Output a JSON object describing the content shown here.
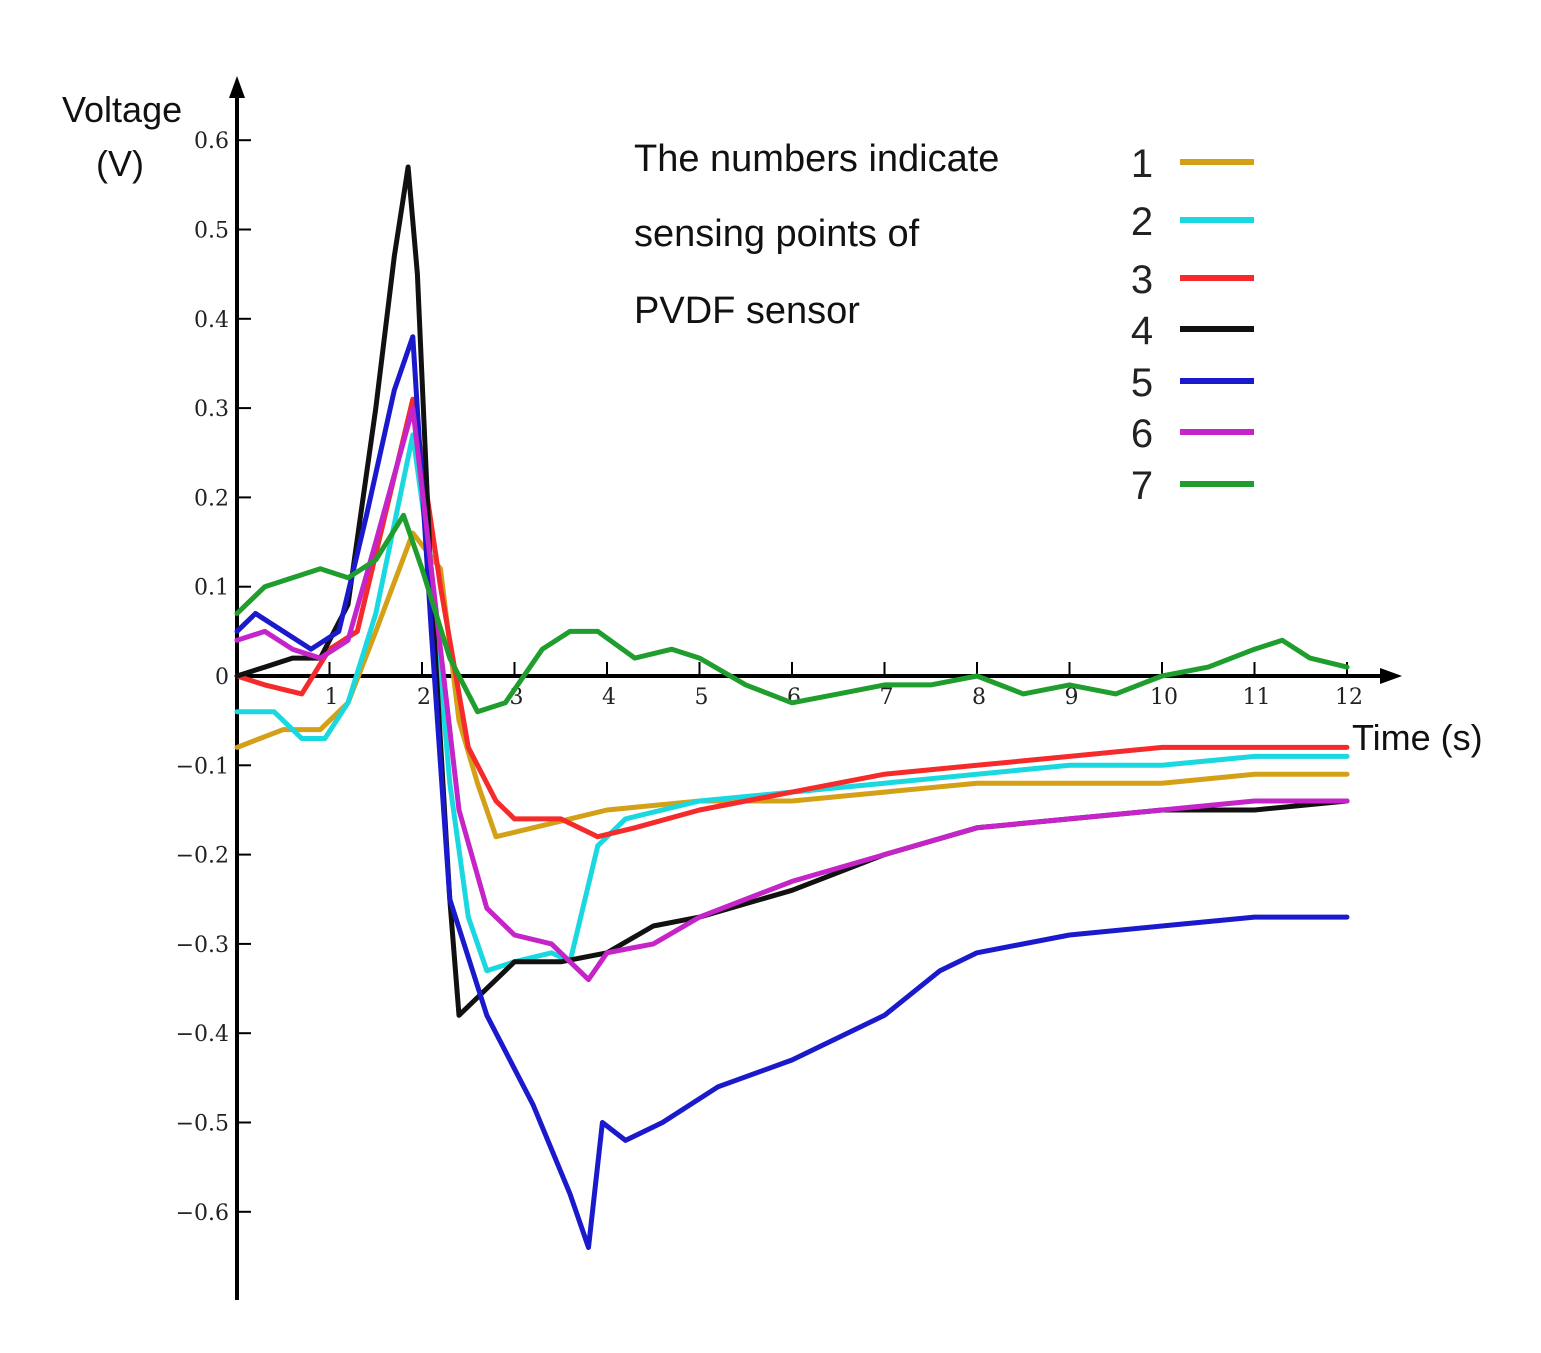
{
  "chart_data": {
    "type": "line",
    "ylabel_line1": "Voltage",
    "ylabel_line2": "(V)",
    "xlabel": "Time (s)",
    "xlim": [
      0,
      12
    ],
    "ylim": [
      -0.66,
      0.62
    ],
    "x_ticks": [
      1,
      2,
      3,
      4,
      5,
      6,
      7,
      8,
      9,
      10,
      11,
      12
    ],
    "y_ticks": [
      {
        "value": 0.6,
        "label": "0.6"
      },
      {
        "value": 0.5,
        "label": "0.5"
      },
      {
        "value": 0.4,
        "label": "0.4"
      },
      {
        "value": 0.3,
        "label": "0.3"
      },
      {
        "value": 0.2,
        "label": "0.2"
      },
      {
        "value": 0.1,
        "label": "0.1"
      },
      {
        "value": 0,
        "label": "0"
      },
      {
        "value": -0.1,
        "label": "−0.1"
      },
      {
        "value": -0.2,
        "label": "−0.2"
      },
      {
        "value": -0.3,
        "label": "−0.3"
      },
      {
        "value": -0.4,
        "label": "−0.4"
      },
      {
        "value": -0.5,
        "label": "−0.5"
      },
      {
        "value": -0.6,
        "label": "−0.6"
      }
    ],
    "annotation": [
      "The numbers indicate",
      "sensing points of",
      "PVDF sensor"
    ],
    "series": [
      {
        "name": "1",
        "color": "#d4a017",
        "x": [
          0,
          0.5,
          0.9,
          1.2,
          1.5,
          1.9,
          2.2,
          2.4,
          2.6,
          2.8,
          3.2,
          3.6,
          4.0,
          5.0,
          6.0,
          7.0,
          8.0,
          9.0,
          10.0,
          11.0,
          12.0
        ],
        "y": [
          -0.08,
          -0.06,
          -0.06,
          -0.03,
          0.05,
          0.16,
          0.12,
          -0.05,
          -0.12,
          -0.18,
          -0.17,
          -0.16,
          -0.15,
          -0.14,
          -0.14,
          -0.13,
          -0.12,
          -0.12,
          -0.12,
          -0.11,
          -0.11
        ]
      },
      {
        "name": "2",
        "color": "#19d8e0",
        "x": [
          0,
          0.4,
          0.7,
          0.95,
          1.2,
          1.5,
          1.9,
          2.1,
          2.3,
          2.5,
          2.7,
          3.0,
          3.4,
          3.6,
          3.9,
          4.2,
          5.0,
          6.0,
          7.0,
          8.0,
          9.0,
          10.0,
          11.0,
          12.0
        ],
        "y": [
          -0.04,
          -0.04,
          -0.07,
          -0.07,
          -0.03,
          0.07,
          0.27,
          0.12,
          -0.12,
          -0.27,
          -0.33,
          -0.32,
          -0.31,
          -0.32,
          -0.19,
          -0.16,
          -0.14,
          -0.13,
          -0.12,
          -0.11,
          -0.1,
          -0.1,
          -0.09,
          -0.09
        ]
      },
      {
        "name": "3",
        "color": "#f52a2a",
        "x": [
          0,
          0.3,
          0.7,
          1.0,
          1.3,
          1.9,
          2.2,
          2.5,
          2.8,
          3.0,
          3.5,
          3.9,
          4.3,
          5.0,
          6.0,
          7.0,
          8.0,
          9.0,
          10.0,
          11.0,
          12.0
        ],
        "y": [
          0.0,
          -0.01,
          -0.02,
          0.03,
          0.05,
          0.31,
          0.1,
          -0.08,
          -0.14,
          -0.16,
          -0.16,
          -0.18,
          -0.17,
          -0.15,
          -0.13,
          -0.11,
          -0.1,
          -0.09,
          -0.08,
          -0.08,
          -0.08
        ]
      },
      {
        "name": "4",
        "color": "#111111",
        "x": [
          0,
          0.3,
          0.6,
          0.9,
          1.2,
          1.5,
          1.7,
          1.85,
          1.95,
          2.1,
          2.3,
          2.4,
          2.6,
          3.0,
          3.5,
          4.0,
          4.5,
          5.0,
          6.0,
          7.0,
          8.0,
          9.0,
          10.0,
          11.0,
          12.0
        ],
        "y": [
          0.0,
          0.01,
          0.02,
          0.02,
          0.08,
          0.3,
          0.47,
          0.57,
          0.45,
          0.1,
          -0.25,
          -0.38,
          -0.36,
          -0.32,
          -0.32,
          -0.31,
          -0.28,
          -0.27,
          -0.24,
          -0.2,
          -0.17,
          -0.16,
          -0.15,
          -0.15,
          -0.14
        ]
      },
      {
        "name": "5",
        "color": "#1a1acc",
        "x": [
          0,
          0.2,
          0.5,
          0.8,
          1.1,
          1.4,
          1.7,
          1.9,
          2.1,
          2.3,
          2.7,
          3.2,
          3.6,
          3.8,
          3.95,
          4.2,
          4.6,
          5.2,
          6.0,
          7.0,
          7.6,
          8.0,
          9.0,
          10.0,
          11.0,
          12.0
        ],
        "y": [
          0.05,
          0.07,
          0.05,
          0.03,
          0.05,
          0.18,
          0.32,
          0.38,
          0.05,
          -0.25,
          -0.38,
          -0.48,
          -0.58,
          -0.64,
          -0.5,
          -0.52,
          -0.5,
          -0.46,
          -0.43,
          -0.38,
          -0.33,
          -0.31,
          -0.29,
          -0.28,
          -0.27,
          -0.27
        ]
      },
      {
        "name": "6",
        "color": "#c524c8",
        "x": [
          0,
          0.3,
          0.6,
          0.9,
          1.2,
          1.5,
          1.9,
          2.1,
          2.4,
          2.7,
          3.0,
          3.4,
          3.8,
          4.0,
          4.5,
          5.0,
          6.0,
          7.0,
          8.0,
          9.0,
          10.0,
          11.0,
          12.0
        ],
        "y": [
          0.04,
          0.05,
          0.03,
          0.02,
          0.04,
          0.15,
          0.3,
          0.12,
          -0.15,
          -0.26,
          -0.29,
          -0.3,
          -0.34,
          -0.31,
          -0.3,
          -0.27,
          -0.23,
          -0.2,
          -0.17,
          -0.16,
          -0.15,
          -0.14,
          -0.14
        ]
      },
      {
        "name": "7",
        "color": "#1f9e2e",
        "x": [
          0,
          0.3,
          0.6,
          0.9,
          1.2,
          1.5,
          1.8,
          2.0,
          2.3,
          2.6,
          2.9,
          3.3,
          3.6,
          3.9,
          4.3,
          4.7,
          5.0,
          5.5,
          6.0,
          6.5,
          7.0,
          7.5,
          8.0,
          8.5,
          9.0,
          9.5,
          10.0,
          10.5,
          11.0,
          11.3,
          11.6,
          12.0
        ],
        "y": [
          0.07,
          0.1,
          0.11,
          0.12,
          0.11,
          0.13,
          0.18,
          0.12,
          0.02,
          -0.04,
          -0.03,
          0.03,
          0.05,
          0.05,
          0.02,
          0.03,
          0.02,
          -0.01,
          -0.03,
          -0.02,
          -0.01,
          -0.01,
          0.0,
          -0.02,
          -0.01,
          -0.02,
          0.0,
          0.01,
          0.03,
          0.04,
          0.02,
          0.01
        ]
      }
    ]
  }
}
